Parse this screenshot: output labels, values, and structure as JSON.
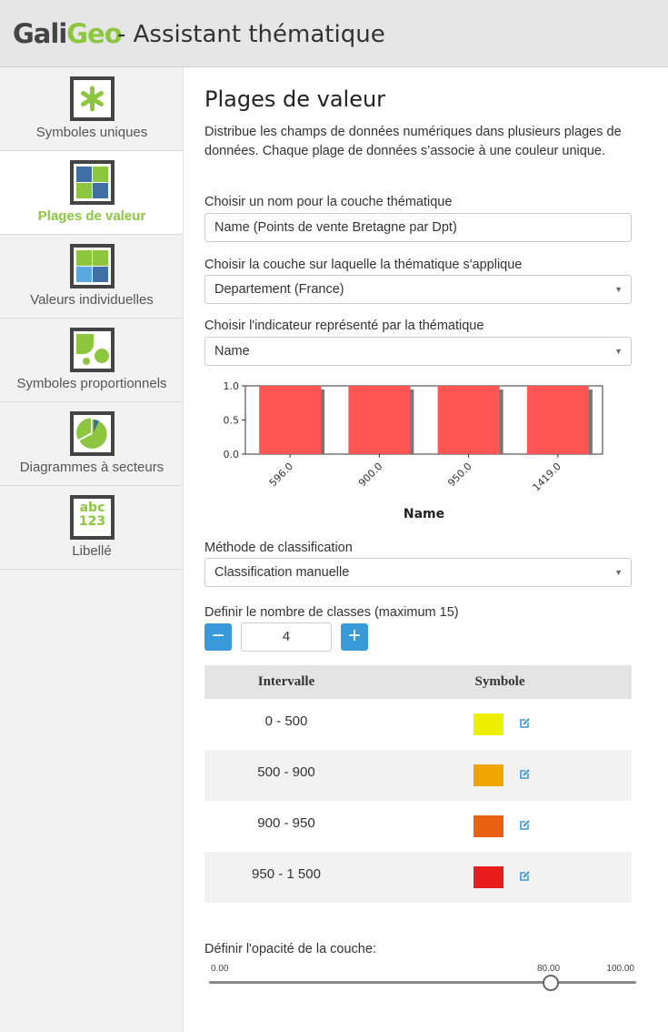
{
  "header": {
    "logo_gali": "Gali",
    "logo_geo": "Geo",
    "title": "- Assistant thématique"
  },
  "sidebar": {
    "items": [
      {
        "label": "Symboles uniques",
        "icon": "asterisk-icon",
        "active": false
      },
      {
        "label": "Plages de valeur",
        "icon": "grid-colors-icon",
        "active": true
      },
      {
        "label": "Valeurs individuelles",
        "icon": "grid-squares-icon",
        "active": false
      },
      {
        "label": "Symboles proportionnels",
        "icon": "proportional-shapes-icon",
        "active": false
      },
      {
        "label": "Diagrammes à secteurs",
        "icon": "pie-chart-icon",
        "active": false
      },
      {
        "label": "Libellé",
        "icon": "abc-123-icon",
        "active": false
      },
      {
        "label": "abc",
        "icon": "",
        "active": false
      },
      {
        "label": "123",
        "icon": "",
        "active": false
      }
    ]
  },
  "main": {
    "title": "Plages de valeur",
    "description": "Distribue les champs de données numériques dans plusieurs plages de données. Chaque plage de données s’associe à une couleur unique.",
    "name_label": "Choisir un nom pour la couche thématique",
    "name_value": "Name (Points de vente Bretagne par Dpt)",
    "layer_label": "Choisir la couche sur laquelle la thématique s'applique",
    "layer_value": "Departement (France)",
    "indicator_label": "Choisir l'indicateur représenté par la thématique",
    "indicator_value": "Name",
    "method_label": "Méthode de classification",
    "method_value": "Classification manuelle",
    "classes_label": "Definir le nombre de classes (maximum 15)",
    "classes_value": "4",
    "minus_label": "−",
    "plus_label": "+",
    "table": {
      "col_interval": "Intervalle",
      "col_symbol": "Symbole",
      "rows": [
        {
          "interval": "0 - 500",
          "color": "#eeee00"
        },
        {
          "interval": "500 - 900",
          "color": "#eea500"
        },
        {
          "interval": "900 - 950",
          "color": "#e86010"
        },
        {
          "interval": "950 - 1 500",
          "color": "#e81c1c"
        }
      ]
    },
    "opacity_label": "Définir l'opacité de la couche:",
    "opacity": {
      "min": "0.00",
      "current": "80.00",
      "max": "100.00",
      "value": 80
    }
  },
  "chart_data": {
    "type": "bar",
    "categories": [
      "596.0",
      "900.0",
      "950.0",
      "1419.0"
    ],
    "values": [
      1.0,
      1.0,
      1.0,
      1.0
    ],
    "yticks": [
      "0.0",
      "0.5",
      "1.0"
    ],
    "ylim": [
      0,
      1
    ],
    "xlabel": "Name",
    "ylabel": "",
    "bar_color": "#ff5555",
    "shadow_color": "#777777"
  },
  "colors": {
    "accent_green": "#8cc63f",
    "button_blue": "#3a9ad9"
  }
}
